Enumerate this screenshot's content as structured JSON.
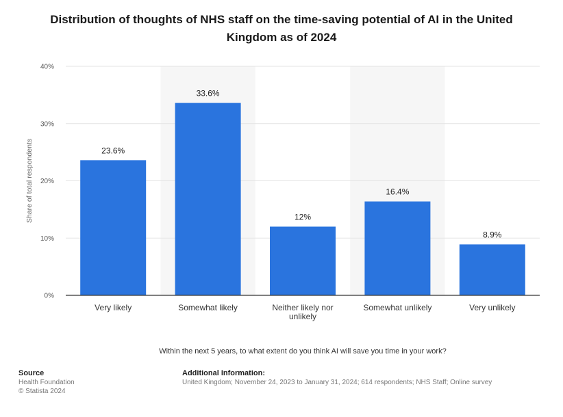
{
  "title": "Distribution of thoughts of NHS staff on the time-saving potential of AI in the United Kingdom as of 2024",
  "question": "Within the next 5 years, to what extent do you think AI will save you time in your work?",
  "source": {
    "heading": "Source",
    "lines": [
      "Health Foundation",
      "© Statista 2024"
    ]
  },
  "additional_info": {
    "heading": "Additional Information:",
    "text": "United Kingdom; November 24, 2023 to January 31, 2024; 614 respondents; NHS Staff; Online survey"
  },
  "colors": {
    "bar": "#2a74de",
    "shade": "#f6f6f6",
    "grid": "#e3e3e3",
    "axis": "#333333"
  },
  "chart_data": {
    "type": "bar",
    "categories": [
      "Very likely",
      "Somewhat likely",
      "Neither likely nor unlikely",
      "Somewhat unlikely",
      "Very unlikely"
    ],
    "category_lines": [
      [
        "Very likely"
      ],
      [
        "Somewhat likely"
      ],
      [
        "Neither likely nor",
        "unlikely"
      ],
      [
        "Somewhat unlikely"
      ],
      [
        "Very unlikely"
      ]
    ],
    "values": [
      23.6,
      33.6,
      12,
      16.4,
      8.9
    ],
    "data_labels": [
      "23.6%",
      "33.6%",
      "12%",
      "16.4%",
      "8.9%"
    ],
    "ylabel": "Share of total respondents",
    "ylim": [
      0,
      40
    ],
    "yticks": [
      0,
      10,
      20,
      30,
      40
    ],
    "ytick_labels": [
      "0%",
      "10%",
      "20%",
      "30%",
      "40%"
    ],
    "grid": true,
    "shaded_categories": [
      1,
      3
    ]
  }
}
